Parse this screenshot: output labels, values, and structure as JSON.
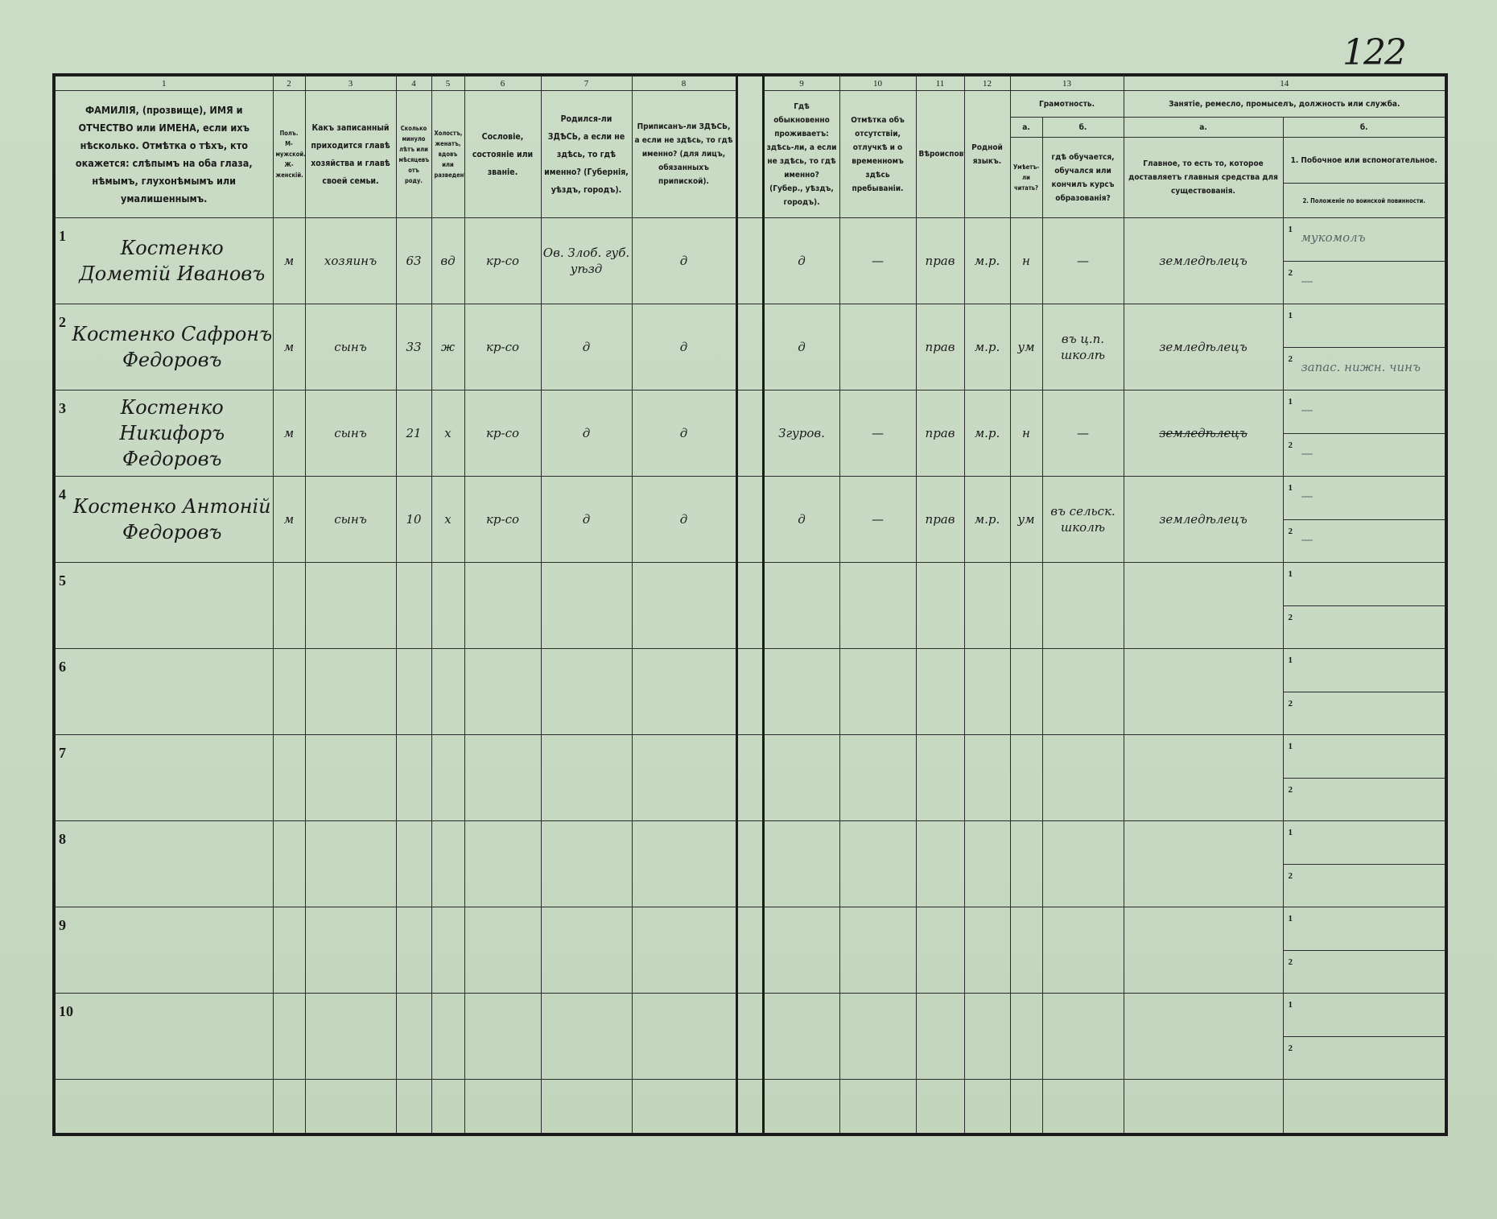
{
  "page_number": "122",
  "column_numbers": [
    "1",
    "2",
    "3",
    "4",
    "5",
    "6",
    "7",
    "8",
    "9",
    "10",
    "11",
    "12",
    "13",
    "14"
  ],
  "headers": {
    "c1": "ФАМИЛІЯ, (прозвище), ИМЯ и ОТЧЕСТВО или ИМЕНА, если ихъ нѣсколько. Отмѣтка о тѣхъ, кто окажется: слѣпымъ на оба глаза, нѣмымъ, глухонѣмымъ или умалишеннымъ.",
    "c2": "Полъ. М-мужской. Ж-женскій.",
    "c3": "Какъ записанный приходится главѣ хозяйства и главѣ своей семьи.",
    "c4": "Сколько минуло лѣтъ или мѣсяцевъ отъ роду.",
    "c5": "Холостъ, женатъ, вдовъ или разведенъ.",
    "c6": "Сословіе, состояніе или званіе.",
    "c7": "Родился-ли ЗДѢСЬ, а если не здѣсь, то гдѣ именно? (Губернія, уѣздъ, городъ).",
    "c8": "Приписанъ-ли ЗДѢСЬ, а если не здѣсь, то гдѣ именно? (для лицъ, обязанныхъ припиской).",
    "c9": "Гдѣ обыкновенно проживаетъ: здѣсь-ли, а если не здѣсь, то гдѣ именно? (Губер., уѣздъ, городъ).",
    "c10": "Отмѣтка объ отсутствіи, отлучкѣ и о временномъ здѣсь пребываніи.",
    "c11": "Вѣроисповѣданіе.",
    "c12": "Родной языкъ.",
    "c13": "Грамотность.",
    "c13a_label": "а.",
    "c13b_label": "б.",
    "c13a": "Умѣетъ-ли читать?",
    "c13b": "гдѣ обучается, обучался или кончилъ курсъ образованія?",
    "c14": "Занятіе, ремесло, промыселъ, должность или служба.",
    "c14a_label": "а.",
    "c14b_label": "б.",
    "c14a": "Главное, то есть то, которое доставляетъ главныя средства для существованія.",
    "c14b1": "1. Побочное или вспомогательное.",
    "c14b2": "2. Положеніе по воинской повинности."
  },
  "rows": [
    {
      "n": "1",
      "name": "Костенко Дометій Ивановъ",
      "sex": "м",
      "relation": "хозяинъ",
      "age": "63",
      "marital": "вд",
      "estate": "кр-со",
      "born": "Ов. Злоб. губ. уѣзд",
      "registered": "д",
      "resides": "д",
      "absence": "—",
      "religion": "прав",
      "language": "м.р.",
      "literate": "н",
      "schooling": "—",
      "occupation": "земледѣлецъ",
      "occ_side": "мукомолъ",
      "military": "—"
    },
    {
      "n": "2",
      "name": "Костенко Сафронъ Федоровъ",
      "sex": "м",
      "relation": "сынъ",
      "age": "33",
      "marital": "ж",
      "estate": "кр-со",
      "born": "д",
      "registered": "д",
      "resides": "д",
      "absence": "",
      "religion": "прав",
      "language": "м.р.",
      "literate": "ум",
      "schooling": "въ ц.п. школѣ",
      "occupation": "земледѣлецъ",
      "occ_side": "",
      "military": "запас. нижн. чинъ"
    },
    {
      "n": "3",
      "name": "Костенко Никифоръ Федоровъ",
      "sex": "м",
      "relation": "сынъ",
      "age": "21",
      "marital": "х",
      "estate": "кр-со",
      "born": "д",
      "registered": "д",
      "resides": "Згуров.",
      "absence": "—",
      "religion": "прав",
      "language": "м.р.",
      "literate": "н",
      "schooling": "—",
      "occupation": "земледѣлецъ",
      "occ_side": "—",
      "military": "—"
    },
    {
      "n": "4",
      "name": "Костенко Антоній Федоровъ",
      "sex": "м",
      "relation": "сынъ",
      "age": "10",
      "marital": "х",
      "estate": "кр-со",
      "born": "д",
      "registered": "д",
      "resides": "д",
      "absence": "—",
      "religion": "прав",
      "language": "м.р.",
      "literate": "ум",
      "schooling": "въ сельск. школѣ",
      "occupation": "земледѣлецъ",
      "occ_side": "—",
      "military": "—"
    },
    {
      "n": "5"
    },
    {
      "n": "6"
    },
    {
      "n": "7"
    },
    {
      "n": "8"
    },
    {
      "n": "9"
    },
    {
      "n": "10"
    }
  ],
  "sub_line_labels": [
    "1",
    "2"
  ],
  "colors": {
    "paper": "#c8dac4",
    "ink_print": "#1b1b1b",
    "ink_hand": "#556a66",
    "ink_correction": "#1f3f78"
  }
}
